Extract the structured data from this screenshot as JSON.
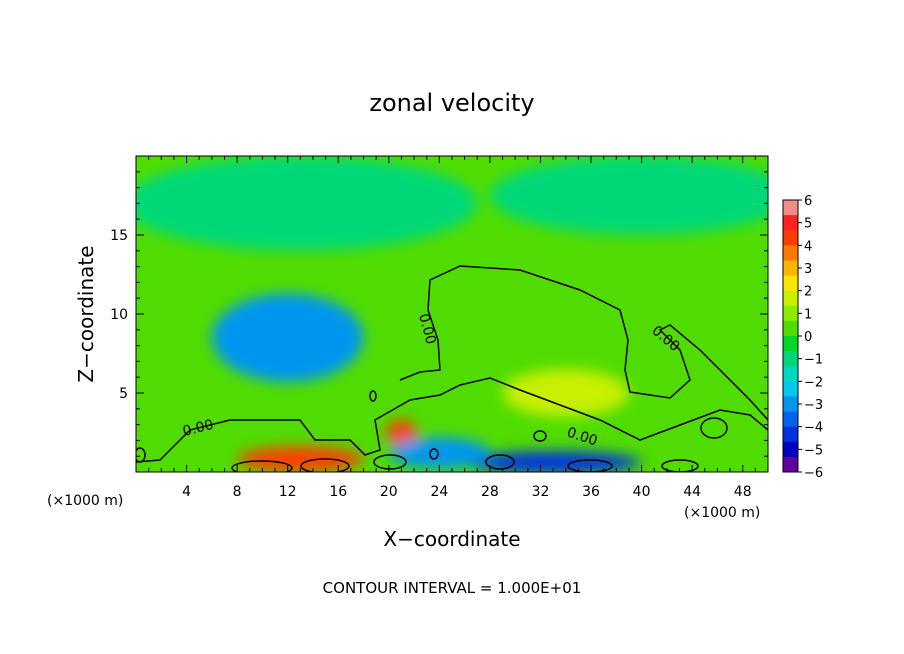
{
  "chart_data": {
    "type": "heatmap",
    "title": "zonal velocity",
    "xlabel": "X−coordinate",
    "ylabel": "Z−coordinate",
    "x_unit_left": "(×1000 m)",
    "x_unit_right": "(×1000 m)",
    "xlim": [
      0,
      50
    ],
    "ylim": [
      0,
      20
    ],
    "x_ticks": [
      4,
      8,
      12,
      16,
      20,
      24,
      28,
      32,
      36,
      40,
      44,
      48
    ],
    "y_ticks": [
      5,
      10,
      15
    ],
    "colorbar": {
      "min": -6,
      "max": 6,
      "ticks": [
        "6",
        "5",
        "4",
        "3",
        "2",
        "1",
        "0",
        "−1",
        "−2",
        "−3",
        "−4",
        "−5",
        "−6"
      ],
      "colors": [
        "#f08c8c",
        "#ff2020",
        "#ff3c00",
        "#ff7800",
        "#ffb400",
        "#ffe600",
        "#c8f000",
        "#8cec00",
        "#50dc00",
        "#00d828",
        "#00d878",
        "#00d8c0",
        "#00c8f0",
        "#0096f0",
        "#0064f0",
        "#0030e0",
        "#0000c0",
        "#6000a0"
      ]
    },
    "contour_label": "0.00",
    "contour_interval_text": "CONTOUR INTERVAL = 1.000E+01",
    "field_features": [
      {
        "x": 12,
        "y": 8.5,
        "rx": 6,
        "ry": 2.8,
        "value": -3.2
      },
      {
        "x": 13,
        "y": 17,
        "rx": 14,
        "ry": 3,
        "value": -1.3
      },
      {
        "x": 40,
        "y": 17.5,
        "rx": 12,
        "ry": 2.5,
        "value": -1.4
      },
      {
        "x": 34,
        "y": 5,
        "rx": 5,
        "ry": 1.5,
        "value": 1.8
      },
      {
        "x": 21,
        "y": 2.5,
        "rx": 1.2,
        "ry": 0.8,
        "value": 4.5
      },
      {
        "x": 13,
        "y": 0.8,
        "rx": 5,
        "ry": 0.8,
        "value": 4.5
      },
      {
        "x": 33,
        "y": 0.6,
        "rx": 7,
        "ry": 0.7,
        "value": -4.5
      },
      {
        "x": 24,
        "y": 1.2,
        "rx": 4,
        "ry": 1,
        "value": -3
      }
    ]
  },
  "footer": {
    "contour_interval": "CONTOUR INTERVAL = 1.000E+01"
  }
}
